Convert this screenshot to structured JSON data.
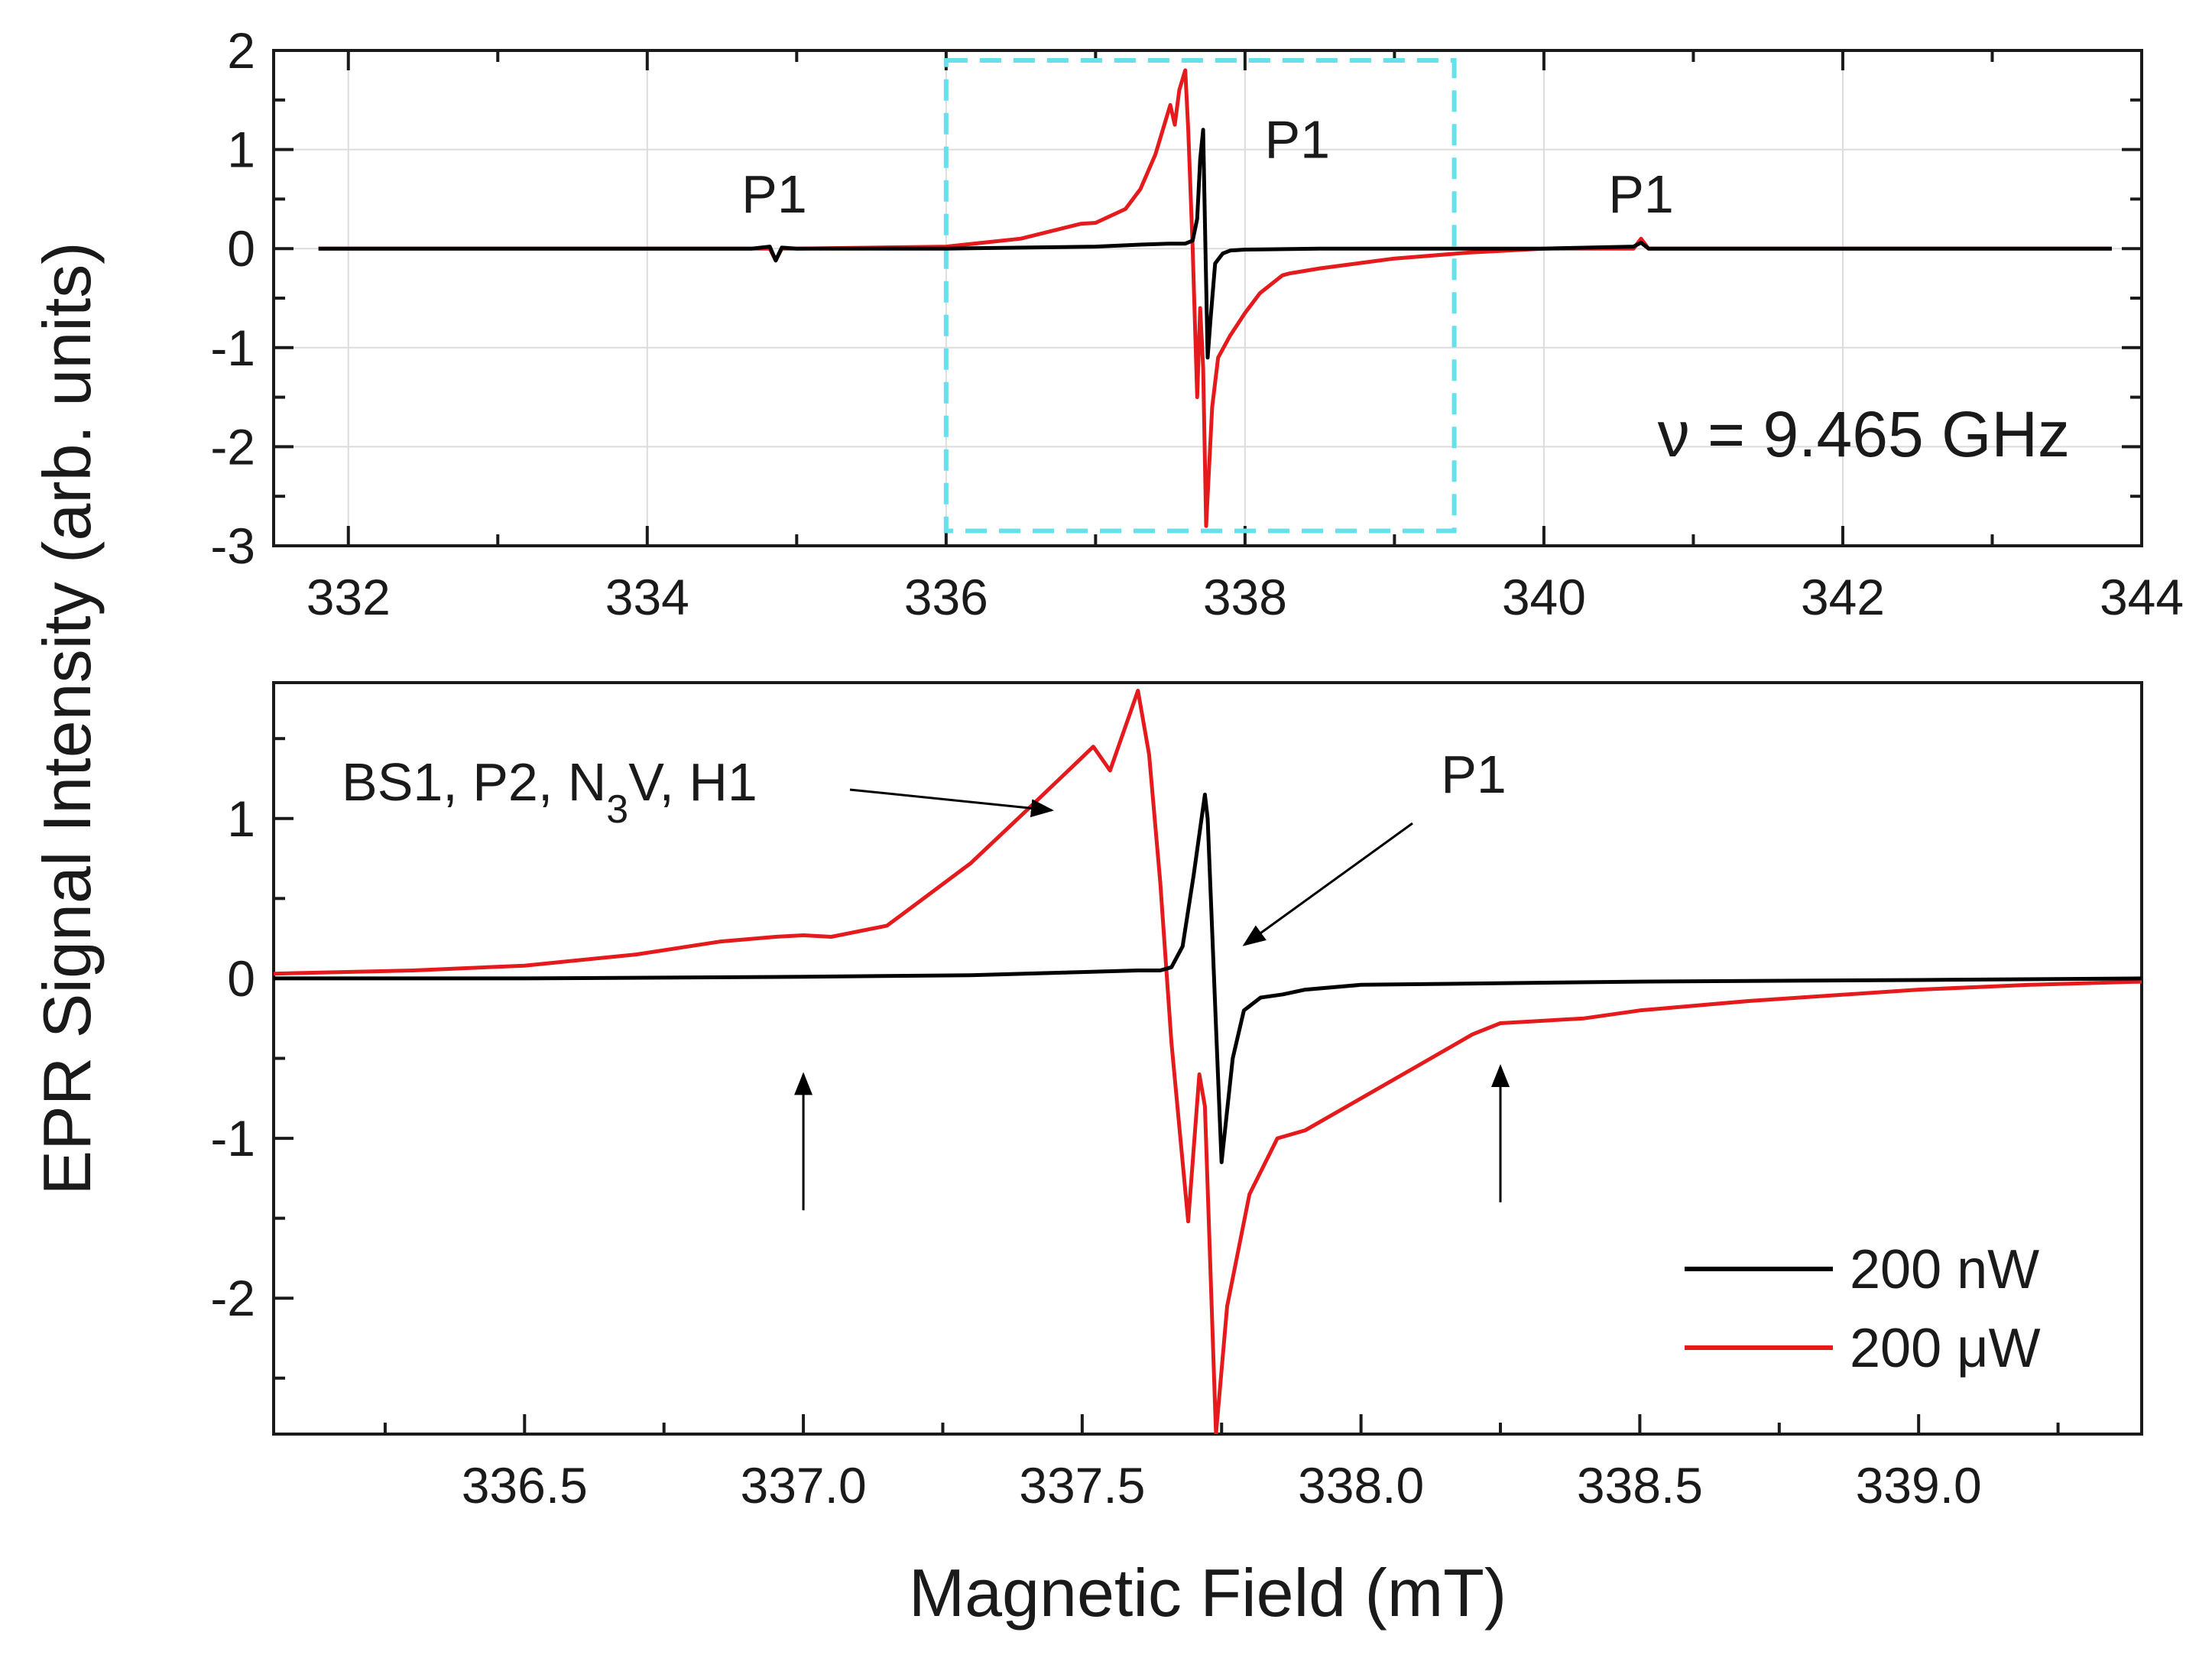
{
  "chart_data": [
    {
      "panel": "top",
      "type": "line",
      "ylabel": "EPR Signal Intensity (arb. units)",
      "xlim": [
        331.5,
        344
      ],
      "ylim": [
        -3,
        2
      ],
      "xticks": [
        332,
        334,
        336,
        338,
        340,
        342,
        344
      ],
      "xtick_labels": [
        "332",
        "334",
        "336",
        "338",
        "340",
        "342",
        "344"
      ],
      "yticks": [
        -3,
        -2,
        -1,
        0,
        1,
        2
      ],
      "ytick_labels": [
        "-3",
        "-2",
        "-1",
        "0",
        "1",
        "2"
      ],
      "grid": true,
      "frequency_label": "ν = 9.465 GHz",
      "zoom_box": {
        "x": [
          336.0,
          339.4
        ],
        "y": [
          -2.85,
          1.9
        ]
      },
      "annotations": [
        {
          "text": "P1",
          "x": 334.85,
          "y": 0.55
        },
        {
          "text": "P1",
          "x": 338.35,
          "y": 1.1
        },
        {
          "text": "P1",
          "x": 340.65,
          "y": 0.55
        }
      ],
      "series": [
        {
          "name": "200 nW",
          "color": "#000000",
          "x": [
            331.8,
            334.7,
            334.82,
            334.86,
            334.9,
            335.0,
            336.0,
            337.0,
            337.3,
            337.5,
            337.6,
            337.65,
            337.68,
            337.7,
            337.72,
            337.735,
            337.75,
            337.77,
            337.8,
            337.85,
            337.9,
            338.0,
            338.5,
            339.0,
            340.0,
            340.6,
            340.65,
            340.7,
            341.0,
            343.8
          ],
          "y": [
            0.0,
            0.0,
            0.02,
            -0.12,
            0.01,
            0.0,
            0.0,
            0.02,
            0.04,
            0.05,
            0.05,
            0.08,
            0.3,
            0.9,
            1.2,
            0.0,
            -1.1,
            -0.7,
            -0.15,
            -0.05,
            -0.02,
            -0.01,
            0.0,
            0.0,
            0.0,
            0.02,
            0.06,
            0.0,
            0.0,
            0.0
          ]
        },
        {
          "name": "200 µW",
          "color": "#e41a1c",
          "x": [
            331.8,
            334.7,
            334.82,
            334.86,
            334.9,
            335.0,
            336.0,
            336.5,
            336.9,
            337.0,
            337.2,
            337.3,
            337.4,
            337.5,
            337.53,
            337.56,
            337.6,
            337.62,
            337.65,
            337.68,
            337.7,
            337.72,
            337.74,
            337.78,
            337.82,
            337.9,
            338.0,
            338.1,
            338.25,
            338.3,
            338.5,
            339.0,
            339.5,
            340.0,
            340.6,
            340.65,
            340.7,
            341.0,
            343.8
          ],
          "y": [
            0.0,
            0.0,
            0.0,
            -0.12,
            0.0,
            0.0,
            0.02,
            0.1,
            0.25,
            0.26,
            0.4,
            0.6,
            0.95,
            1.45,
            1.25,
            1.6,
            1.8,
            1.2,
            0.0,
            -1.5,
            -0.6,
            -1.2,
            -2.8,
            -1.6,
            -1.1,
            -0.88,
            -0.65,
            -0.45,
            -0.27,
            -0.25,
            -0.2,
            -0.1,
            -0.04,
            0.0,
            0.0,
            0.1,
            0.0,
            0.0,
            0.0
          ]
        }
      ]
    },
    {
      "panel": "bottom",
      "type": "line",
      "xlabel": "Magnetic Field (mT)",
      "xlim": [
        336.05,
        339.4
      ],
      "ylim": [
        -2.85,
        1.85
      ],
      "xticks": [
        336.5,
        337.0,
        337.5,
        338.0,
        338.5,
        339.0
      ],
      "xtick_labels": [
        "336.5",
        "337.0",
        "337.5",
        "338.0",
        "338.5",
        "339.0"
      ],
      "yticks": [
        -2,
        -1,
        0,
        1
      ],
      "ytick_labels": [
        "-2",
        "-1",
        "0",
        "1"
      ],
      "grid": false,
      "annotations": [
        {
          "text_parts": [
            "BS1, P2, N",
            "3",
            "V, H1"
          ],
          "text": "BS1, P2, N3V, H1"
        },
        {
          "text": "P1"
        }
      ],
      "arrow_markers": [
        {
          "x": 337.0,
          "y_from": -1.45,
          "y_to": -0.6
        },
        {
          "x": 338.25,
          "y_from": -1.4,
          "y_to": -0.55
        }
      ],
      "legend": {
        "position": "bottom-right",
        "entries": [
          {
            "label": "200 nW",
            "color": "#000000"
          },
          {
            "label": "200 μW",
            "color": "#e41a1c"
          }
        ]
      },
      "series": [
        {
          "name": "200 nW",
          "color": "#000000",
          "x": [
            336.05,
            336.5,
            337.0,
            337.3,
            337.5,
            337.6,
            337.64,
            337.66,
            337.68,
            337.7,
            337.72,
            337.725,
            337.74,
            337.75,
            337.77,
            337.79,
            337.82,
            337.86,
            337.9,
            338.0,
            338.5,
            339.0,
            339.4
          ],
          "y": [
            0.0,
            0.0,
            0.01,
            0.02,
            0.04,
            0.05,
            0.05,
            0.07,
            0.2,
            0.65,
            1.15,
            1.0,
            -0.3,
            -1.15,
            -0.5,
            -0.2,
            -0.12,
            -0.1,
            -0.07,
            -0.04,
            -0.02,
            -0.01,
            0.0
          ]
        },
        {
          "name": "200 µW",
          "color": "#e41a1c",
          "x": [
            336.05,
            336.3,
            336.5,
            336.7,
            336.85,
            336.95,
            337.0,
            337.05,
            337.15,
            337.2,
            337.3,
            337.4,
            337.46,
            337.52,
            337.55,
            337.58,
            337.6,
            337.62,
            337.64,
            337.66,
            337.69,
            337.71,
            337.72,
            337.74,
            337.76,
            337.8,
            337.85,
            337.9,
            338.0,
            338.1,
            338.2,
            338.25,
            338.4,
            338.5,
            338.7,
            339.0,
            339.2,
            339.4
          ],
          "y": [
            0.03,
            0.05,
            0.08,
            0.15,
            0.23,
            0.26,
            0.27,
            0.26,
            0.33,
            0.46,
            0.72,
            1.05,
            1.25,
            1.45,
            1.3,
            1.6,
            1.8,
            1.4,
            0.6,
            -0.4,
            -1.52,
            -0.6,
            -0.8,
            -2.85,
            -2.05,
            -1.35,
            -1.0,
            -0.95,
            -0.75,
            -0.55,
            -0.35,
            -0.28,
            -0.25,
            -0.2,
            -0.14,
            -0.07,
            -0.04,
            -0.02
          ]
        }
      ]
    }
  ]
}
